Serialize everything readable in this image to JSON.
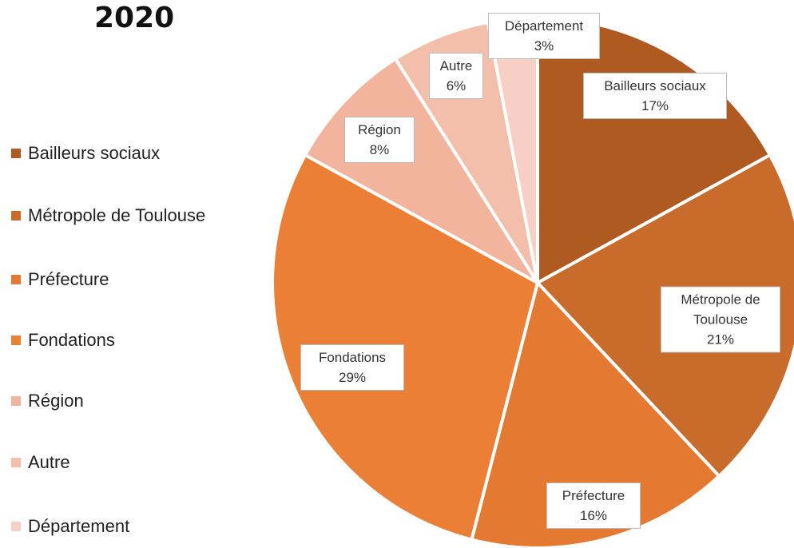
{
  "chart_data": {
    "type": "pie",
    "title": "2020",
    "categories": [
      "Bailleurs sociaux",
      "Métropole de Toulouse",
      "Préfecture",
      "Fondations",
      "Région",
      "Autre",
      "Département"
    ],
    "values": [
      17,
      21,
      16,
      29,
      8,
      6,
      3
    ],
    "value_labels": [
      "17%",
      "21%",
      "16%",
      "29%",
      "8%",
      "6%",
      "3%"
    ],
    "colors": [
      "#ae5a21",
      "#c96b2a",
      "#e47a31",
      "#ea7f35",
      "#f2b49c",
      "#f4bfaa",
      "#f8cfc4"
    ],
    "legend": "left"
  }
}
